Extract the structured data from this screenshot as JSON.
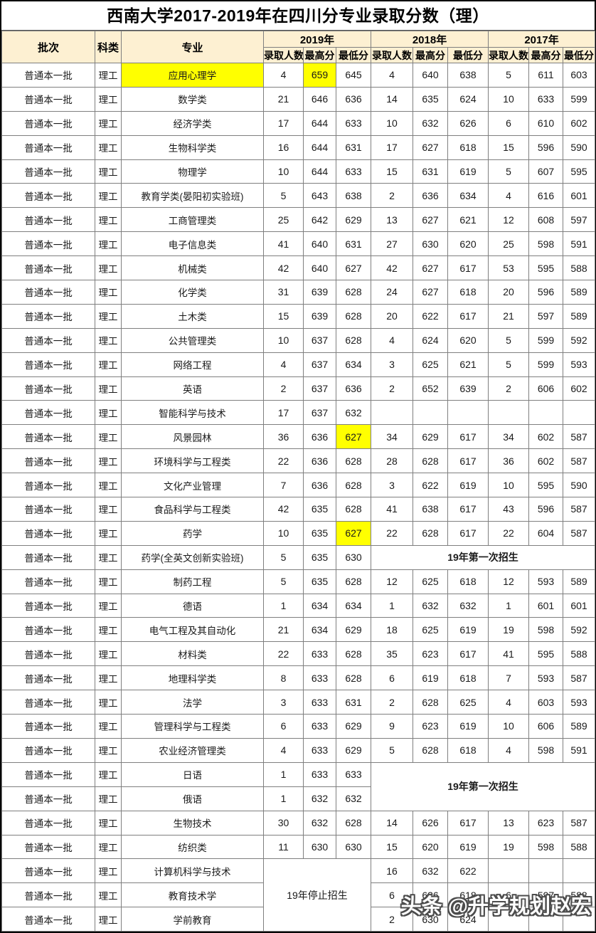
{
  "title": "西南大学2017-2019年在四川分专业录取分数（理）",
  "watermark": "头条 @升学规划赵宏",
  "colors": {
    "header_bg": "#FDF0D2",
    "highlight": "#FFFF00",
    "grid_line": "#7F7F7F",
    "outer_border": "#000000"
  },
  "table": {
    "columns": {
      "batch": "批次",
      "subject": "科类",
      "major": "专业"
    },
    "year_groups": [
      {
        "label": "2019年"
      },
      {
        "label": "2018年"
      },
      {
        "label": "2017年"
      }
    ],
    "sub_columns": [
      "录取人数",
      "最高分",
      "最低分"
    ],
    "batch_value": "普通本一批",
    "subject_value": "理工",
    "notes": {
      "first_enroll": "19年第一次招生",
      "stopped": "19年停止招生"
    },
    "rows": [
      {
        "major": "应用心理学",
        "y2019": [
          "4",
          "659",
          "645"
        ],
        "y2018": [
          "4",
          "640",
          "638"
        ],
        "y2017": [
          "5",
          "611",
          "603"
        ],
        "yellow": [
          "major",
          "y2019:1"
        ]
      },
      {
        "major": "数学类",
        "y2019": [
          "21",
          "646",
          "636"
        ],
        "y2018": [
          "14",
          "635",
          "624"
        ],
        "y2017": [
          "10",
          "633",
          "599"
        ]
      },
      {
        "major": "经济学类",
        "y2019": [
          "17",
          "644",
          "633"
        ],
        "y2018": [
          "10",
          "632",
          "626"
        ],
        "y2017": [
          "6",
          "610",
          "602"
        ]
      },
      {
        "major": "生物科学类",
        "y2019": [
          "16",
          "644",
          "631"
        ],
        "y2018": [
          "17",
          "627",
          "618"
        ],
        "y2017": [
          "15",
          "596",
          "590"
        ]
      },
      {
        "major": "物理学",
        "y2019": [
          "10",
          "644",
          "633"
        ],
        "y2018": [
          "15",
          "631",
          "619"
        ],
        "y2017": [
          "5",
          "607",
          "595"
        ]
      },
      {
        "major": "教育学类(晏阳初实验班)",
        "y2019": [
          "5",
          "643",
          "638"
        ],
        "y2018": [
          "2",
          "636",
          "634"
        ],
        "y2017": [
          "4",
          "616",
          "601"
        ]
      },
      {
        "major": "工商管理类",
        "y2019": [
          "25",
          "642",
          "629"
        ],
        "y2018": [
          "13",
          "627",
          "621"
        ],
        "y2017": [
          "12",
          "608",
          "597"
        ]
      },
      {
        "major": "电子信息类",
        "y2019": [
          "41",
          "640",
          "631"
        ],
        "y2018": [
          "27",
          "630",
          "620"
        ],
        "y2017": [
          "25",
          "598",
          "591"
        ]
      },
      {
        "major": "机械类",
        "y2019": [
          "42",
          "640",
          "627"
        ],
        "y2018": [
          "42",
          "627",
          "617"
        ],
        "y2017": [
          "53",
          "595",
          "588"
        ]
      },
      {
        "major": "化学类",
        "y2019": [
          "31",
          "639",
          "628"
        ],
        "y2018": [
          "24",
          "627",
          "618"
        ],
        "y2017": [
          "20",
          "596",
          "589"
        ]
      },
      {
        "major": "土木类",
        "y2019": [
          "15",
          "639",
          "628"
        ],
        "y2018": [
          "20",
          "622",
          "617"
        ],
        "y2017": [
          "21",
          "597",
          "589"
        ]
      },
      {
        "major": "公共管理类",
        "y2019": [
          "10",
          "637",
          "628"
        ],
        "y2018": [
          "4",
          "624",
          "620"
        ],
        "y2017": [
          "5",
          "599",
          "592"
        ]
      },
      {
        "major": "网络工程",
        "y2019": [
          "4",
          "637",
          "634"
        ],
        "y2018": [
          "3",
          "625",
          "621"
        ],
        "y2017": [
          "5",
          "599",
          "593"
        ]
      },
      {
        "major": "英语",
        "y2019": [
          "2",
          "637",
          "636"
        ],
        "y2018": [
          "2",
          "652",
          "639"
        ],
        "y2017": [
          "2",
          "606",
          "602"
        ]
      },
      {
        "major": "智能科学与技术",
        "y2019": [
          "17",
          "637",
          "632"
        ],
        "y2018": [
          "",
          "",
          ""
        ],
        "y2017": [
          "",
          "",
          ""
        ]
      },
      {
        "major": "风景园林",
        "y2019": [
          "36",
          "636",
          "627"
        ],
        "y2018": [
          "34",
          "629",
          "617"
        ],
        "y2017": [
          "34",
          "602",
          "587"
        ],
        "yellow": [
          "y2019:2"
        ]
      },
      {
        "major": "环境科学与工程类",
        "y2019": [
          "22",
          "636",
          "628"
        ],
        "y2018": [
          "28",
          "628",
          "617"
        ],
        "y2017": [
          "36",
          "602",
          "587"
        ]
      },
      {
        "major": "文化产业管理",
        "y2019": [
          "7",
          "636",
          "628"
        ],
        "y2018": [
          "3",
          "622",
          "619"
        ],
        "y2017": [
          "10",
          "595",
          "590"
        ]
      },
      {
        "major": "食品科学与工程类",
        "y2019": [
          "42",
          "635",
          "628"
        ],
        "y2018": [
          "41",
          "638",
          "617"
        ],
        "y2017": [
          "43",
          "596",
          "587"
        ]
      },
      {
        "major": "药学",
        "y2019": [
          "10",
          "635",
          "627"
        ],
        "y2018": [
          "22",
          "628",
          "617"
        ],
        "y2017": [
          "22",
          "604",
          "587"
        ],
        "yellow": [
          "y2019:2"
        ]
      },
      {
        "major": "药学(全英文创新实验班)",
        "y2019": [
          "5",
          "635",
          "630"
        ],
        "merge_1817": {
          "note": "first_enroll",
          "rowspan": 1
        }
      },
      {
        "major": "制药工程",
        "y2019": [
          "5",
          "635",
          "628"
        ],
        "y2018": [
          "12",
          "625",
          "618"
        ],
        "y2017": [
          "12",
          "593",
          "589"
        ]
      },
      {
        "major": "德语",
        "y2019": [
          "1",
          "634",
          "634"
        ],
        "y2018": [
          "1",
          "632",
          "632"
        ],
        "y2017": [
          "1",
          "601",
          "601"
        ]
      },
      {
        "major": "电气工程及其自动化",
        "y2019": [
          "21",
          "634",
          "629"
        ],
        "y2018": [
          "18",
          "625",
          "619"
        ],
        "y2017": [
          "19",
          "598",
          "592"
        ]
      },
      {
        "major": "材料类",
        "y2019": [
          "22",
          "633",
          "628"
        ],
        "y2018": [
          "35",
          "623",
          "617"
        ],
        "y2017": [
          "41",
          "595",
          "588"
        ]
      },
      {
        "major": "地理科学类",
        "y2019": [
          "8",
          "633",
          "628"
        ],
        "y2018": [
          "6",
          "619",
          "618"
        ],
        "y2017": [
          "7",
          "593",
          "587"
        ]
      },
      {
        "major": "法学",
        "y2019": [
          "3",
          "633",
          "631"
        ],
        "y2018": [
          "2",
          "628",
          "625"
        ],
        "y2017": [
          "4",
          "603",
          "593"
        ]
      },
      {
        "major": "管理科学与工程类",
        "y2019": [
          "6",
          "633",
          "629"
        ],
        "y2018": [
          "9",
          "623",
          "619"
        ],
        "y2017": [
          "10",
          "606",
          "589"
        ]
      },
      {
        "major": "农业经济管理类",
        "y2019": [
          "4",
          "633",
          "629"
        ],
        "y2018": [
          "5",
          "628",
          "618"
        ],
        "y2017": [
          "4",
          "598",
          "591"
        ]
      },
      {
        "major": "日语",
        "y2019": [
          "1",
          "633",
          "633"
        ],
        "merge_1817": {
          "note": "first_enroll",
          "rowspan": 2
        }
      },
      {
        "major": "俄语",
        "y2019": [
          "1",
          "632",
          "632"
        ],
        "skip_1817": true
      },
      {
        "major": "生物技术",
        "y2019": [
          "30",
          "632",
          "628"
        ],
        "y2018": [
          "14",
          "626",
          "617"
        ],
        "y2017": [
          "13",
          "623",
          "587"
        ]
      },
      {
        "major": "纺织类",
        "y2019": [
          "11",
          "630",
          "630"
        ],
        "y2018": [
          "15",
          "620",
          "619"
        ],
        "y2017": [
          "19",
          "598",
          "588"
        ]
      },
      {
        "major": "计算机科学与技术",
        "merge_19": {
          "note": "stopped",
          "rowspan": 3
        },
        "y2018": [
          "16",
          "632",
          "622"
        ],
        "y2017": [
          "",
          "",
          ""
        ]
      },
      {
        "major": "教育技术学",
        "skip_19": true,
        "y2018": [
          "6",
          "626",
          "618"
        ],
        "y2017": [
          "6",
          "597",
          "588"
        ]
      },
      {
        "major": "学前教育",
        "skip_19": true,
        "y2018": [
          "2",
          "630",
          "624"
        ],
        "y2017": [
          "",
          "",
          ""
        ]
      }
    ]
  }
}
